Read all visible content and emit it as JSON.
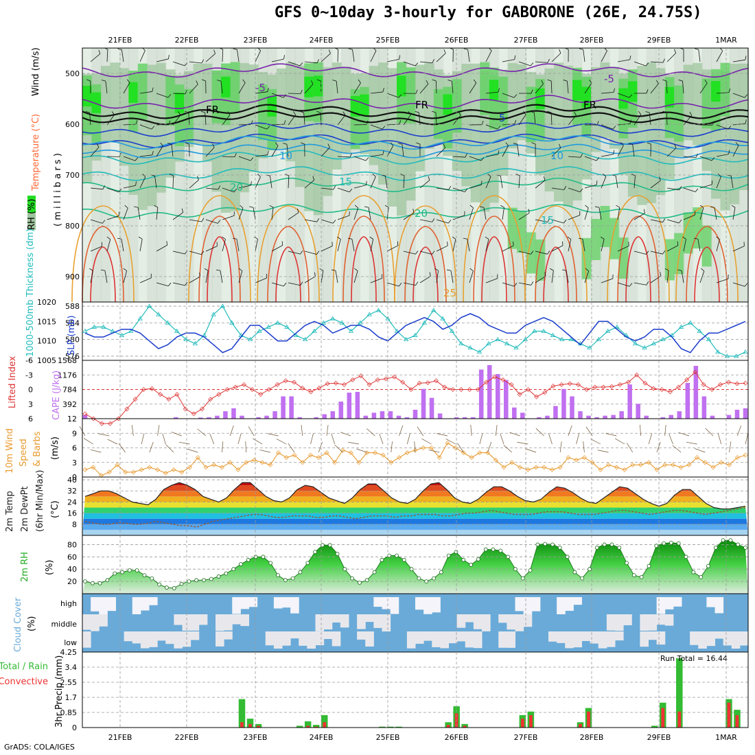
{
  "title": "GFS 0~10day 3-hourly for GABORONE (26E, 24.75S)",
  "credit": "GrADS: COLA/IGES",
  "dates": [
    "21FEB",
    "22FEB",
    "23FEB",
    "24FEB",
    "25FEB",
    "26FEB",
    "27FEB",
    "28FEB",
    "29FEB",
    "1MAR"
  ],
  "colors": {
    "rh": "#2fd62f",
    "temp": "#ff6633",
    "wind": "#000000",
    "thick": "#22bbbb",
    "slp": "#1a3ccc",
    "li": "#dd3333",
    "cape": "#c070f0",
    "wspd": "#e89a30",
    "rh2m": "#22aa22",
    "cloud": "#6aaad8",
    "precip": "#33bb33",
    "conv": "#ee3333"
  },
  "chart_data": [
    {
      "type": "heatmap",
      "name": "cross-section",
      "ylabel_parts": [
        "RH (%)",
        "Temperature (°C)",
        "Wind (m/s)"
      ],
      "ylabel_unit": "( m i l l i b a r s )",
      "y_ticks": [
        "500",
        "600",
        "700",
        "800",
        "900"
      ],
      "ylim": [
        450,
        950
      ],
      "temperature_contour_labels": [
        "-5",
        "FR",
        "FR",
        "FR",
        "-5",
        "5",
        "10",
        "10",
        "15",
        "20",
        "20",
        "15",
        "25"
      ],
      "temperature_levels": [
        -5,
        0,
        5,
        10,
        15,
        20,
        25,
        30
      ]
    },
    {
      "type": "line",
      "name": "thickness-slp",
      "ylabel_left": "1000-500mb Thickness (dm)",
      "ylabel_right": "SLP (mb)",
      "left_ticks": [
        "576",
        "580",
        "584",
        "588"
      ],
      "right_ticks": [
        "1005",
        "1010",
        "1015",
        "1020"
      ],
      "ylim_left": [
        575,
        589
      ],
      "ylim_right": [
        1005,
        1020
      ],
      "series": [
        {
          "name": "1000-500mb Thickness (dm)",
          "values": [
            582,
            583,
            583,
            582,
            581,
            582,
            585,
            588,
            586,
            584,
            582,
            580,
            579,
            581,
            586,
            588,
            584,
            581,
            580,
            582,
            583,
            584,
            583,
            581,
            580,
            582,
            584,
            585,
            584,
            582,
            584,
            586,
            587,
            585,
            582,
            580,
            581,
            584,
            587,
            585,
            582,
            579,
            578,
            577,
            579,
            580,
            579,
            578,
            580,
            582,
            582,
            581,
            580,
            580,
            579,
            578,
            580,
            582,
            583,
            581,
            579,
            578,
            579,
            580,
            581,
            583,
            584,
            582,
            580,
            577,
            576,
            576,
            577
          ]
        },
        {
          "name": "SLP (mb)",
          "values": [
            1012,
            1011,
            1011,
            1012,
            1013,
            1013,
            1012,
            1010,
            1008,
            1009,
            1011,
            1012,
            1012,
            1011,
            1009,
            1007,
            1008,
            1011,
            1014,
            1014,
            1012,
            1010,
            1010,
            1012,
            1014,
            1015,
            1014,
            1012,
            1013,
            1014,
            1014,
            1013,
            1011,
            1010,
            1012,
            1014,
            1015,
            1016,
            1015,
            1013,
            1014,
            1016,
            1017,
            1016,
            1014,
            1013,
            1012,
            1012,
            1014,
            1015,
            1016,
            1015,
            1013,
            1011,
            1009,
            1012,
            1015,
            1015,
            1013,
            1011,
            1010,
            1011,
            1013,
            1013,
            1011,
            1008,
            1007,
            1010,
            1012,
            1012,
            1013,
            1014,
            1015
          ]
        }
      ]
    },
    {
      "type": "bar",
      "name": "cape-li",
      "ylabel_left": "Lifted Index",
      "ylabel_right": "CAPE (J/kg)",
      "li_ticks": [
        "-6",
        "-3",
        "0",
        "3",
        "6"
      ],
      "cape_ticks": [
        "392",
        "784",
        "1176",
        "1568"
      ],
      "ylim_li": [
        6,
        -6
      ],
      "ylim_cape": [
        0,
        1568
      ],
      "series": [
        {
          "name": "CAPE (J/kg)",
          "values": [
            100,
            0,
            0,
            0,
            0,
            0,
            0,
            0,
            0,
            0,
            0,
            40,
            0,
            0,
            30,
            40,
            80,
            200,
            280,
            80,
            0,
            40,
            80,
            200,
            600,
            600,
            40,
            0,
            40,
            120,
            200,
            460,
            700,
            720,
            80,
            160,
            200,
            200,
            80,
            40,
            240,
            800,
            560,
            140,
            0,
            40,
            40,
            40,
            1320,
            1440,
            1200,
            1040,
            300,
            160,
            0,
            40,
            80,
            340,
            800,
            600,
            200,
            80,
            40,
            80,
            100,
            200,
            920,
            400,
            80,
            0,
            40,
            100,
            200,
            960,
            1420,
            600,
            80,
            0,
            100,
            240,
            280
          ]
        },
        {
          "name": "Lifted Index",
          "values": [
            5,
            6,
            7,
            7,
            6,
            4,
            2,
            0,
            -0.2,
            1,
            2,
            1,
            4,
            5,
            4,
            2,
            1,
            0,
            -0.5,
            -1,
            0,
            1,
            0,
            -1,
            -1.8,
            -1.5,
            -0.3,
            0.5,
            -0.3,
            -1.2,
            -1.3,
            -1,
            -2,
            -2.8,
            -1,
            -2,
            -2.2,
            -2.6,
            -1.5,
            0,
            -1.3,
            -1.4,
            -1.8,
            -0.5,
            0,
            0,
            0,
            0,
            -1.5,
            -2.6,
            -2,
            -1,
            1,
            0,
            1.5,
            0.6,
            -0.7,
            -1,
            -1.2,
            -1,
            0,
            -0.5,
            -0.5,
            -0.6,
            -1,
            -1.5,
            -3,
            -1.3,
            -0.2,
            0,
            0.5,
            -0.5,
            -2,
            -3.6,
            -1,
            0,
            -1,
            -1.5,
            -1.2,
            -1.3
          ]
        }
      ]
    },
    {
      "type": "line",
      "name": "10m-wind",
      "ylabel": "10m Wind Speed & Barbs (m/s)",
      "ylabel_parts": [
        "10m Wind",
        "Speed",
        "& Barbs",
        "(m/s)"
      ],
      "y_ticks": [
        "0",
        "3",
        "6",
        "9",
        "12"
      ],
      "ylim": [
        0,
        12
      ],
      "series": [
        {
          "name": "Speed",
          "values": [
            1.5,
            2,
            0.3,
            1,
            2.5,
            1,
            1,
            1.5,
            2,
            1.5,
            0.8,
            1.5,
            1,
            2,
            4,
            2,
            2.5,
            2,
            3,
            1.5,
            3,
            3.5,
            3,
            2.5,
            5,
            4,
            4.5,
            3,
            4.5,
            4,
            5,
            3,
            5.5,
            5,
            3,
            5,
            5,
            4.5,
            3,
            4,
            5,
            5.5,
            6,
            6,
            4,
            7,
            6,
            5,
            4,
            5,
            5,
            3.5,
            2,
            3,
            2,
            1.5,
            2,
            2,
            1.5,
            2,
            4,
            3.5,
            4,
            3,
            1.5,
            2.5,
            2,
            1.5,
            2.5,
            2.5,
            3,
            1.5,
            2.5,
            2.5,
            2,
            2.5,
            4,
            3,
            2,
            3,
            2.5,
            4,
            4.5
          ]
        }
      ]
    },
    {
      "type": "area",
      "name": "2m-temp",
      "ylabel_parts": [
        "2m Temp",
        "2m DewPt",
        "(6hr Min/Max)",
        "(°C)"
      ],
      "y_ticks": [
        "8",
        "16",
        "24",
        "32",
        "40"
      ],
      "ylim": [
        0,
        42
      ],
      "series": [
        {
          "name": "2m Temp",
          "values": [
            28,
            30,
            32,
            32,
            30,
            27,
            24,
            23,
            22,
            26,
            33,
            36,
            38,
            36,
            33,
            28,
            26,
            24,
            27,
            33,
            38,
            38,
            33,
            28,
            25,
            24,
            27,
            33,
            36,
            35,
            31,
            27,
            25,
            23,
            27,
            33,
            37,
            37,
            32,
            27,
            24,
            23,
            26,
            32,
            37,
            38,
            33,
            27,
            24,
            23,
            26,
            31,
            35,
            35,
            32,
            28,
            25,
            24,
            26,
            31,
            35,
            34,
            31,
            27,
            24,
            23,
            27,
            31,
            35,
            34,
            30,
            26,
            23,
            21,
            23,
            29,
            33,
            33,
            28,
            23,
            20,
            19,
            19,
            20,
            21
          ]
        },
        {
          "name": "2m DewPt",
          "values": [
            10,
            9,
            8,
            8,
            9,
            9,
            8,
            8,
            9,
            10,
            9,
            8,
            7,
            7,
            6,
            8,
            10,
            11,
            12,
            13,
            14,
            15,
            15,
            14,
            13,
            13,
            14,
            14,
            14,
            13,
            13,
            14,
            14,
            13,
            12,
            13,
            14,
            14,
            14,
            13,
            14,
            14,
            15,
            15,
            15,
            14,
            14,
            15,
            16,
            16,
            17,
            18,
            17,
            16,
            15,
            15,
            15,
            16,
            17,
            17,
            17,
            16,
            15,
            15,
            15,
            16,
            17,
            18,
            18,
            17,
            16,
            15,
            16,
            17,
            18,
            18,
            17,
            16,
            15,
            16,
            17,
            18,
            19,
            20
          ]
        }
      ]
    },
    {
      "type": "area",
      "name": "2m-rh",
      "ylabel": "2m RH (%)",
      "y_ticks": [
        "20",
        "40",
        "60",
        "80"
      ],
      "ylim": [
        0,
        95
      ],
      "series": [
        {
          "name": "2m RH",
          "values": [
            20,
            17,
            17,
            22,
            33,
            35,
            38,
            38,
            30,
            25,
            15,
            10,
            9,
            16,
            20,
            22,
            22,
            24,
            28,
            33,
            40,
            48,
            55,
            60,
            60,
            50,
            30,
            22,
            25,
            35,
            50,
            68,
            79,
            79,
            65,
            40,
            25,
            18,
            22,
            35,
            55,
            62,
            62,
            55,
            40,
            25,
            20,
            25,
            35,
            62,
            68,
            55,
            47,
            56,
            72,
            72,
            70,
            60,
            40,
            25,
            38,
            80,
            81,
            80,
            75,
            60,
            35,
            25,
            40,
            75,
            80,
            80,
            75,
            50,
            30,
            27,
            45,
            78,
            82,
            83,
            82,
            60,
            35,
            27,
            45,
            75,
            87,
            87,
            80,
            75
          ]
        }
      ]
    },
    {
      "type": "heatmap",
      "name": "cloud-cover",
      "ylabel": "Cloud Cover (%)",
      "y_ticks": [
        "high",
        "middle",
        "low"
      ]
    },
    {
      "type": "bar",
      "name": "precip",
      "ylabel": "3hr Precip (mm)",
      "ylabel_left": "Total / Rain",
      "ylabel_left2": "Convective",
      "y_ticks": [
        "0",
        "0.85",
        "1.7",
        "2.55",
        "3.4",
        "4.25"
      ],
      "ylim": [
        0,
        4.25
      ],
      "annotation": "Run Total  =  16.44",
      "series": [
        {
          "name": "Total / Rain",
          "values": [
            0,
            0,
            0,
            0,
            0,
            0,
            0,
            0,
            0,
            0,
            0,
            0,
            0,
            0,
            0,
            0,
            0,
            0,
            0,
            1.6,
            0.5,
            0.2,
            0,
            0,
            0,
            0,
            0.1,
            0.35,
            0.15,
            0.7,
            0,
            0,
            0,
            0,
            0,
            0,
            0.05,
            0.05,
            0.05,
            0,
            0,
            0,
            0,
            0,
            0.3,
            1.2,
            0.2,
            0,
            0,
            0,
            0,
            0,
            0,
            0.7,
            0.9,
            0,
            0,
            0,
            0,
            0,
            0.3,
            1.1,
            0,
            0,
            0,
            0,
            0,
            0,
            0,
            0.1,
            1.4,
            0,
            3.9,
            0,
            0,
            0,
            0,
            0,
            1.6,
            1.0,
            0
          ]
        },
        {
          "name": "Convective",
          "values": [
            0,
            0,
            0,
            0,
            0,
            0,
            0,
            0,
            0,
            0,
            0,
            0,
            0,
            0,
            0,
            0,
            0,
            0,
            0,
            0.3,
            0.2,
            0.1,
            0,
            0,
            0,
            0,
            0,
            0.1,
            0.05,
            0.3,
            0,
            0,
            0,
            0,
            0,
            0,
            0,
            0,
            0,
            0,
            0,
            0,
            0,
            0,
            0.15,
            0.8,
            0.1,
            0,
            0,
            0,
            0,
            0,
            0,
            0.5,
            0.7,
            0,
            0,
            0,
            0,
            0,
            0.2,
            0.9,
            0,
            0,
            0,
            0,
            0,
            0,
            0,
            0,
            1.1,
            0,
            0.9,
            0,
            0,
            0,
            0,
            0,
            1.4,
            0.7,
            0
          ]
        }
      ]
    }
  ]
}
